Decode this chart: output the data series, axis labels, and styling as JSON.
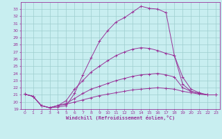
{
  "xlabel": "Windchill (Refroidissement éolien,°C)",
  "bg_color": "#c8eef0",
  "grid_color": "#9ecece",
  "line_color": "#993399",
  "xlim": [
    -0.5,
    23.5
  ],
  "ylim": [
    19,
    34
  ],
  "xticks": [
    0,
    1,
    2,
    3,
    4,
    5,
    6,
    7,
    8,
    9,
    10,
    11,
    12,
    13,
    14,
    15,
    16,
    17,
    18,
    19,
    20,
    21,
    22,
    23
  ],
  "yticks": [
    19,
    20,
    21,
    22,
    23,
    24,
    25,
    26,
    27,
    28,
    29,
    30,
    31,
    32,
    33
  ],
  "series1_x": [
    0,
    1,
    2,
    3,
    4,
    5,
    6,
    7,
    8,
    9,
    10,
    11,
    12,
    13,
    14,
    15,
    16,
    17,
    18,
    19,
    20,
    21,
    22,
    23
  ],
  "series1_y": [
    21.1,
    20.8,
    19.5,
    19.2,
    19.3,
    19.5,
    21.2,
    23.8,
    26.2,
    28.5,
    30.0,
    31.2,
    31.8,
    32.6,
    33.4,
    33.1,
    33.0,
    32.5,
    26.5,
    22.5,
    21.5,
    21.2,
    21.0,
    21.0
  ],
  "series2_x": [
    0,
    1,
    2,
    3,
    4,
    5,
    6,
    7,
    8,
    9,
    10,
    11,
    12,
    13,
    14,
    15,
    16,
    17,
    18,
    19,
    20,
    21,
    22,
    23
  ],
  "series2_y": [
    21.1,
    20.8,
    19.5,
    19.2,
    19.5,
    20.2,
    21.8,
    23.0,
    24.2,
    25.0,
    25.8,
    26.5,
    27.0,
    27.4,
    27.6,
    27.5,
    27.2,
    26.8,
    26.5,
    23.5,
    21.8,
    21.3,
    21.0,
    21.0
  ],
  "series3_x": [
    0,
    1,
    2,
    3,
    4,
    5,
    6,
    7,
    8,
    9,
    10,
    11,
    12,
    13,
    14,
    15,
    16,
    17,
    18,
    19,
    20,
    21,
    22,
    23
  ],
  "series3_y": [
    21.1,
    20.8,
    19.5,
    19.2,
    19.5,
    19.8,
    20.5,
    21.2,
    21.8,
    22.2,
    22.6,
    23.0,
    23.3,
    23.6,
    23.8,
    23.9,
    24.0,
    23.8,
    23.5,
    22.0,
    21.5,
    21.2,
    21.0,
    21.0
  ],
  "series4_x": [
    0,
    1,
    2,
    3,
    4,
    5,
    6,
    7,
    8,
    9,
    10,
    11,
    12,
    13,
    14,
    15,
    16,
    17,
    18,
    19,
    20,
    21,
    22,
    23
  ],
  "series4_y": [
    21.1,
    20.8,
    19.5,
    19.2,
    19.5,
    19.7,
    20.0,
    20.3,
    20.6,
    20.9,
    21.1,
    21.3,
    21.5,
    21.7,
    21.8,
    21.9,
    22.0,
    21.9,
    21.8,
    21.5,
    21.3,
    21.1,
    21.0,
    21.0
  ]
}
